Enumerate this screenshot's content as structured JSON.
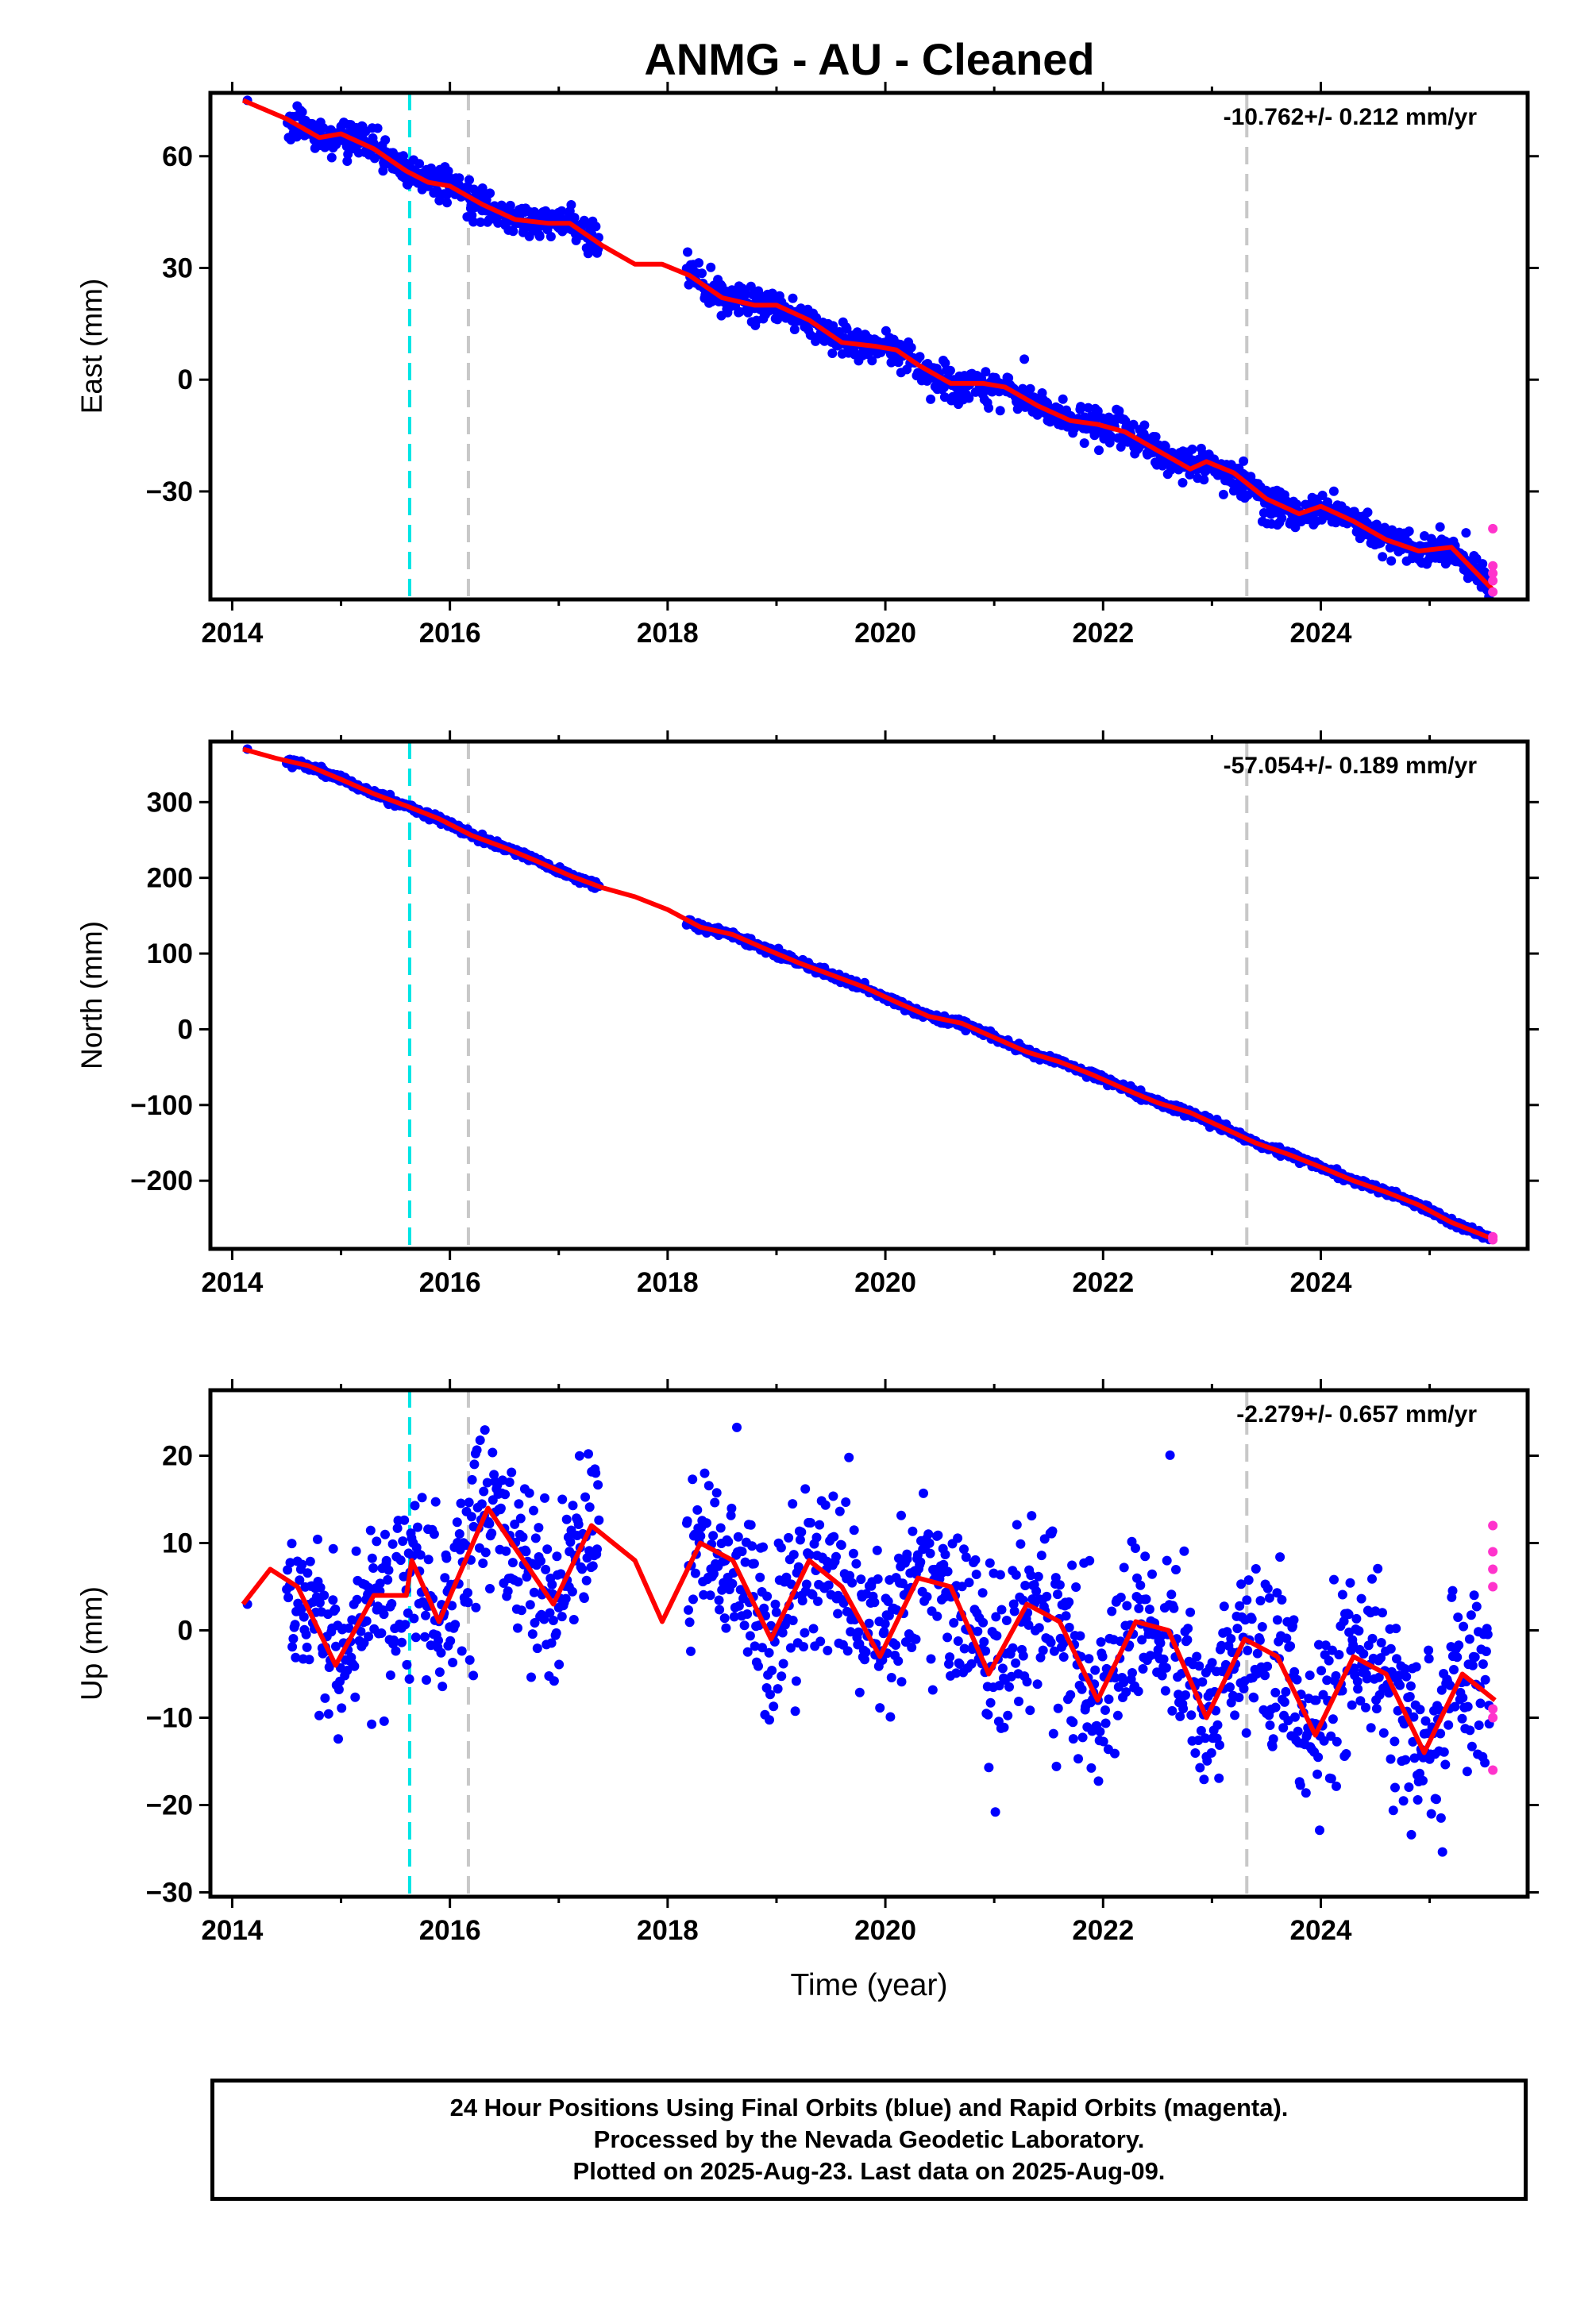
{
  "title": "ANMG  - AU - Cleaned",
  "colors": {
    "final_orbits": "#0000ff",
    "rapid_orbits": "#ff33cc",
    "model": "#ff0000",
    "equipment_change": "#00e5e5",
    "earthquake": "#c8c8c8"
  },
  "x_axis": {
    "label": "Time (year)",
    "range": [
      2013.8,
      2025.9
    ],
    "ticks": [
      2014,
      2016,
      2018,
      2020,
      2022,
      2024
    ]
  },
  "vertical_lines": [
    {
      "x": 2015.63,
      "style": "cyan-dashed"
    },
    {
      "x": 2016.17,
      "style": "gray-dashed"
    },
    {
      "x": 2023.32,
      "style": "gray-dashed"
    }
  ],
  "footer": {
    "line1": "24 Hour Positions Using Final Orbits (blue) and Rapid Orbits (magenta).",
    "line2": "Processed by the Nevada Geodetic Laboratory.",
    "line3": "Plotted on 2025-Aug-23. Last data on 2025-Aug-09."
  },
  "chart_data": [
    {
      "type": "scatter",
      "ylabel": "East (mm)",
      "xlabel": "",
      "rate_label": "-10.762+/- 0.212 mm/yr",
      "ylim": [
        -59,
        77
      ],
      "yticks": [
        60,
        30,
        0,
        -30
      ],
      "gaps": [
        [
          2017.37,
          2018.17
        ]
      ],
      "jitter": 2.2,
      "series": [
        {
          "role": "model",
          "x": [
            2014.1,
            2014.5,
            2014.8,
            2015.0,
            2015.3,
            2015.6,
            2015.8,
            2016.0,
            2016.3,
            2016.6,
            2016.9,
            2017.1,
            2017.4,
            2017.7,
            2017.95,
            2018.2,
            2018.5,
            2018.8,
            2019.0,
            2019.3,
            2019.6,
            2019.9,
            2020.1,
            2020.3,
            2020.6,
            2020.9,
            2021.1,
            2021.4,
            2021.7,
            2021.95,
            2022.2,
            2022.5,
            2022.8,
            2022.95,
            2023.2,
            2023.5,
            2023.8,
            2024.0,
            2024.3,
            2024.6,
            2024.9,
            2025.2,
            2025.6
          ],
          "y": [
            75,
            70,
            65,
            66,
            62,
            56,
            53,
            52,
            47,
            43,
            42,
            42,
            36,
            31,
            31,
            28,
            22,
            20,
            20,
            16,
            10,
            9,
            8,
            4,
            -1,
            -1,
            -2,
            -7,
            -11,
            -12,
            -14,
            -19,
            -24,
            -22,
            -25,
            -32,
            -36,
            -34,
            -38,
            -43,
            -46,
            -45,
            -57
          ]
        },
        {
          "role": "rapid",
          "x": [
            2025.58,
            2025.58,
            2025.58,
            2025.58,
            2025.58
          ],
          "y": [
            -40,
            -50,
            -52,
            -54,
            -57
          ]
        }
      ]
    },
    {
      "type": "scatter",
      "ylabel": "North (mm)",
      "xlabel": "",
      "rate_label": "-57.054+/- 0.189 mm/yr",
      "ylim": [
        -290,
        380
      ],
      "yticks": [
        300,
        200,
        100,
        0,
        -100,
        -200
      ],
      "gaps": [
        [
          2017.37,
          2018.17
        ]
      ],
      "jitter": 2.5,
      "series": [
        {
          "role": "model",
          "x": [
            2014.1,
            2014.4,
            2014.7,
            2015.0,
            2015.3,
            2015.6,
            2015.9,
            2016.2,
            2016.5,
            2016.8,
            2017.1,
            2017.4,
            2017.7,
            2018.0,
            2018.3,
            2018.6,
            2018.9,
            2019.2,
            2019.5,
            2019.8,
            2020.1,
            2020.4,
            2020.7,
            2021.0,
            2021.3,
            2021.6,
            2021.9,
            2022.2,
            2022.5,
            2022.8,
            2023.1,
            2023.4,
            2023.7,
            2024.0,
            2024.3,
            2024.6,
            2024.9,
            2025.2,
            2025.6
          ],
          "y": [
            370,
            358,
            348,
            330,
            311,
            295,
            278,
            256,
            240,
            222,
            203,
            187,
            175,
            158,
            135,
            125,
            106,
            88,
            72,
            56,
            36,
            17,
            8,
            -11,
            -30,
            -43,
            -60,
            -79,
            -97,
            -110,
            -130,
            -150,
            -165,
            -182,
            -200,
            -215,
            -232,
            -255,
            -278
          ]
        },
        {
          "role": "rapid",
          "x": [
            2025.58,
            2025.58
          ],
          "y": [
            -274,
            -278
          ]
        }
      ]
    },
    {
      "type": "scatter",
      "ylabel": "Up (mm)",
      "xlabel": "Time (year)",
      "rate_label": "-2.279+/- 0.657 mm/yr",
      "ylim": [
        -30.5,
        27.5
      ],
      "yticks": [
        20,
        10,
        0,
        -10,
        -20,
        -30
      ],
      "gaps": [
        [
          2017.37,
          2018.17
        ]
      ],
      "jitter": 5.0,
      "series": [
        {
          "role": "model",
          "x": [
            2014.1,
            2014.35,
            2014.6,
            2014.95,
            2015.3,
            2015.6,
            2015.65,
            2015.9,
            2016.35,
            2016.95,
            2017.3,
            2017.7,
            2017.95,
            2018.3,
            2018.6,
            2018.95,
            2019.3,
            2019.6,
            2019.95,
            2020.3,
            2020.6,
            2020.95,
            2021.3,
            2021.6,
            2021.95,
            2022.3,
            2022.6,
            2022.95,
            2023.3,
            2023.6,
            2023.95,
            2024.3,
            2024.6,
            2024.95,
            2025.3,
            2025.6
          ],
          "y": [
            3,
            7,
            5,
            -4,
            4,
            4,
            8,
            1,
            14,
            3,
            12,
            8,
            1,
            10,
            8,
            -1,
            8,
            5,
            -3,
            6,
            5,
            -5,
            3,
            1,
            -8,
            1,
            0,
            -10,
            -1,
            -3,
            -12,
            -3,
            -5,
            -14,
            -5,
            -8
          ]
        },
        {
          "role": "rapid",
          "x": [
            2025.58,
            2025.58,
            2025.58,
            2025.58,
            2025.58,
            2025.58,
            2025.58
          ],
          "y": [
            12,
            9,
            7,
            5,
            -9,
            -10,
            -16
          ]
        }
      ]
    }
  ]
}
